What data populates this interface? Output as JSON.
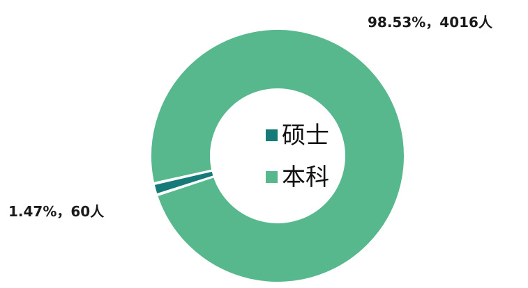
{
  "chart_data": {
    "type": "pie",
    "donut": true,
    "title": "",
    "series": [
      {
        "name": "硕士",
        "value": 60,
        "percent": 1.47,
        "label": "1.47%，60人",
        "color": "#167b78"
      },
      {
        "name": "本科",
        "value": 4016,
        "percent": 98.53,
        "label": "98.53%，4016人",
        "color": "#56b88c"
      }
    ],
    "legend": {
      "placement": "center",
      "items": [
        "硕士",
        "本科"
      ]
    }
  }
}
